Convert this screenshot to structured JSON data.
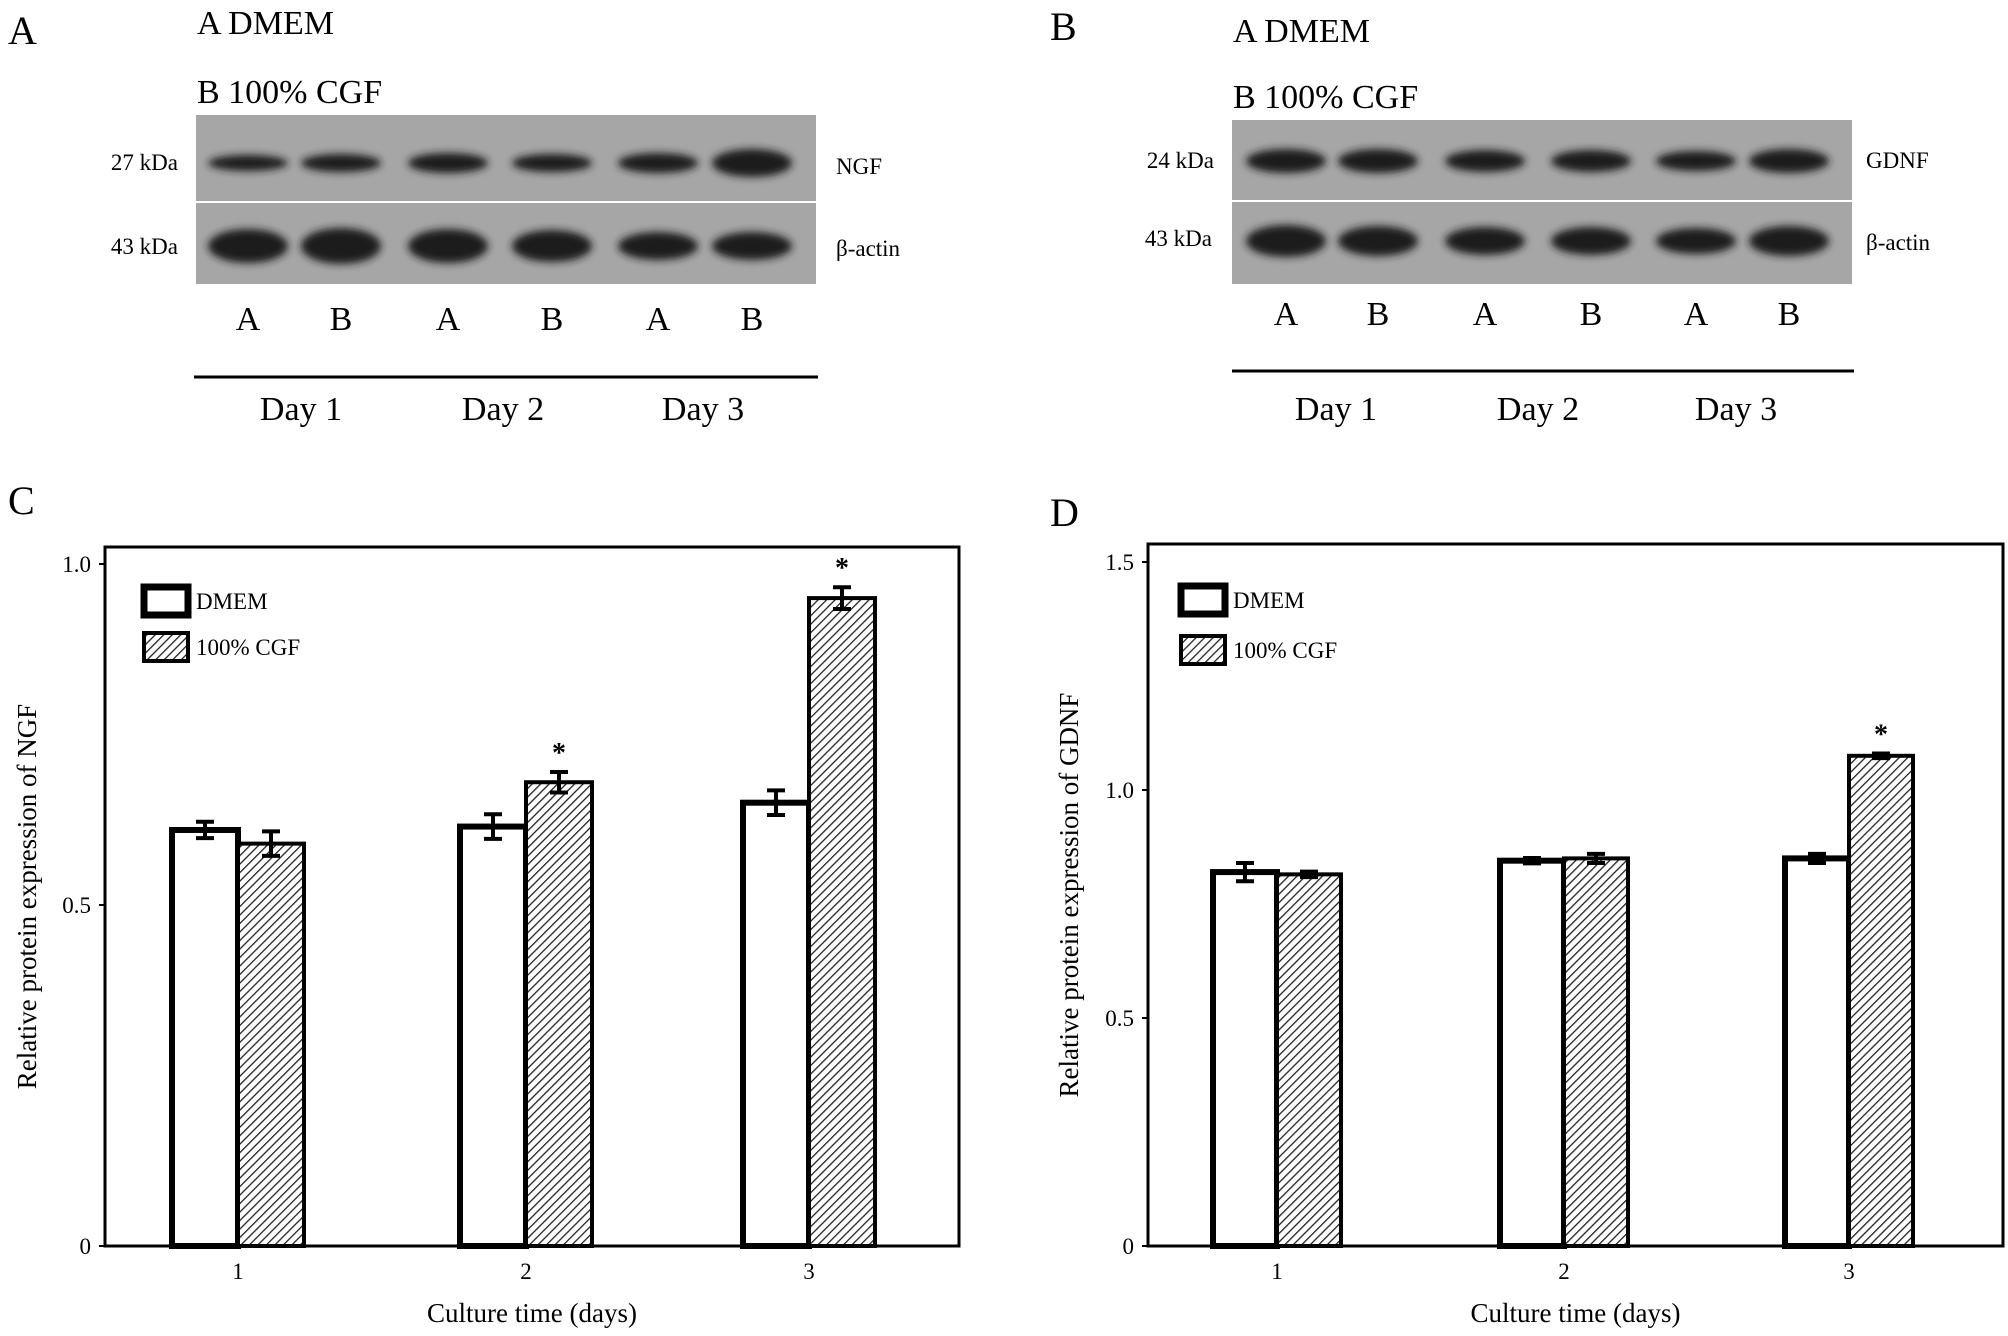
{
  "panels": {
    "a": "A",
    "b": "B",
    "c": "C",
    "d": "D"
  },
  "blot_a": {
    "legend_a": "A  DMEM",
    "legend_b": "B  100% CGF",
    "rows": [
      {
        "kda": "27 kDa",
        "protein": "NGF"
      },
      {
        "kda": "43 kDa",
        "protein": "β-actin"
      }
    ],
    "lanes": [
      "A",
      "B",
      "A",
      "B",
      "A",
      "B"
    ],
    "days": [
      "Day 1",
      "Day 2",
      "Day 3"
    ]
  },
  "blot_b": {
    "legend_a": "A  DMEM",
    "legend_b": "B  100% CGF",
    "rows": [
      {
        "kda": "24 kDa",
        "protein": "GDNF"
      },
      {
        "kda": "43 kDa",
        "protein": "β-actin"
      }
    ],
    "lanes": [
      "A",
      "B",
      "A",
      "B",
      "A",
      "B"
    ],
    "days": [
      "Day 1",
      "Day 2",
      "Day 3"
    ]
  },
  "chart_data": [
    {
      "type": "bar",
      "title": "",
      "xlabel": "Culture time (days)",
      "ylabel": "Relative protein expression of NGF",
      "categories": [
        "1",
        "2",
        "3"
      ],
      "ylim": [
        0,
        1.0
      ],
      "yticks": [
        "0",
        "0.5",
        "1.0"
      ],
      "ytick_values": [
        0,
        0.5,
        1.0
      ],
      "legend_position": "top-left",
      "series": [
        {
          "name": "DMEM",
          "values": [
            0.61,
            0.615,
            0.65
          ],
          "errors": [
            0.012,
            0.018,
            0.018
          ],
          "fill": "white"
        },
        {
          "name": "100% CGF",
          "values": [
            0.59,
            0.68,
            0.95
          ],
          "errors": [
            0.018,
            0.015,
            0.016
          ],
          "fill": "hatched"
        }
      ],
      "significance": [
        [
          false,
          false
        ],
        [
          false,
          true
        ],
        [
          false,
          true
        ]
      ],
      "annotation": "*"
    },
    {
      "type": "bar",
      "title": "",
      "xlabel": "Culture time (days)",
      "ylabel": "Relative protein expression of GDNF",
      "categories": [
        "1",
        "2",
        "3"
      ],
      "ylim": [
        0,
        1.5
      ],
      "yticks": [
        "0",
        "0.5",
        "1.0",
        "1.5"
      ],
      "ytick_values": [
        0,
        0.5,
        1.0,
        1.5
      ],
      "legend_position": "top-left",
      "series": [
        {
          "name": "DMEM",
          "values": [
            0.82,
            0.845,
            0.85
          ],
          "errors": [
            0.02,
            0.006,
            0.01
          ],
          "fill": "white"
        },
        {
          "name": "100% CGF",
          "values": [
            0.815,
            0.85,
            1.075
          ],
          "errors": [
            0.006,
            0.01,
            0.005
          ],
          "fill": "hatched"
        }
      ],
      "significance": [
        [
          false,
          false
        ],
        [
          false,
          false
        ],
        [
          false,
          true
        ]
      ],
      "annotation": "*"
    }
  ]
}
